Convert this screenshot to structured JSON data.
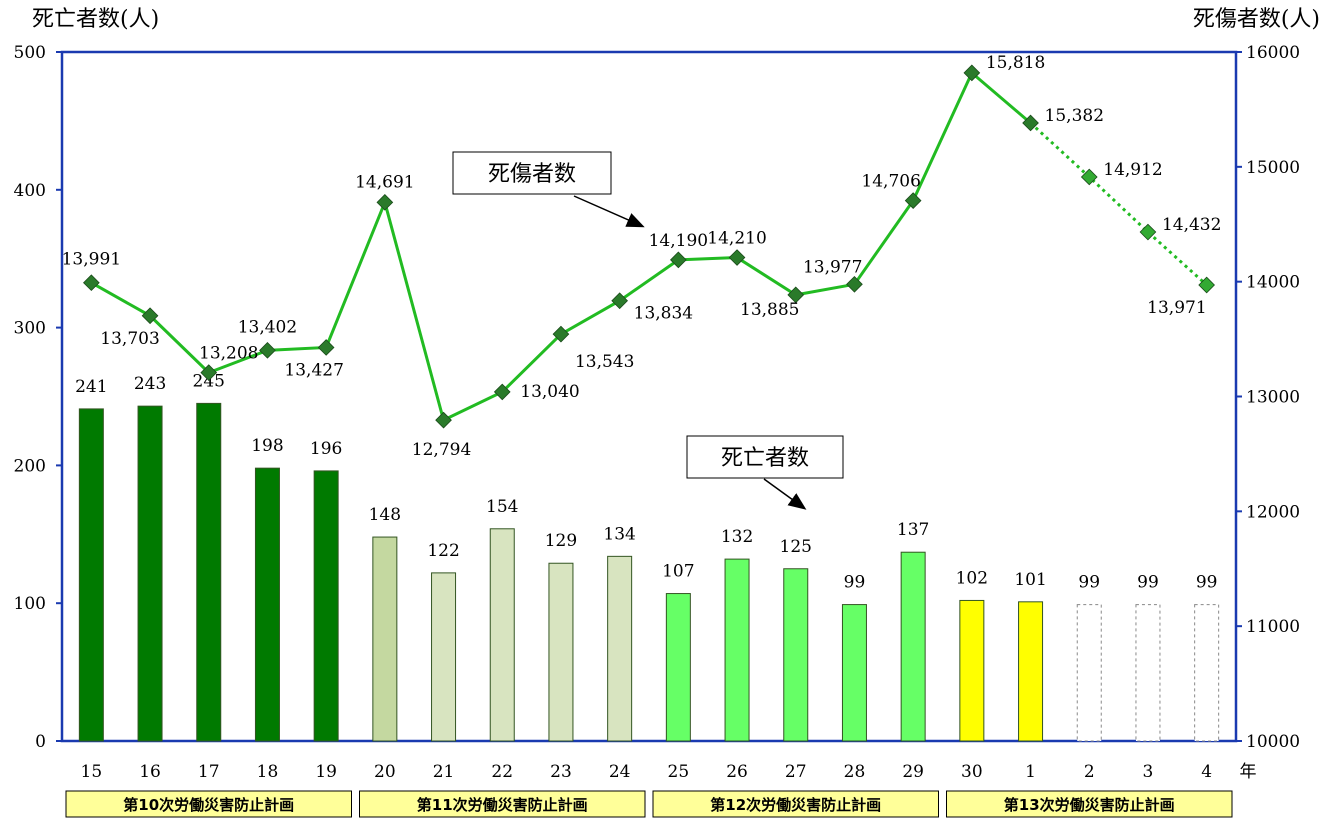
{
  "chart_data": {
    "type": "bar+line",
    "left_axis_title": "死亡者数(人)",
    "right_axis_title": "死傷者数(人)",
    "x_unit": "年",
    "categories": [
      "15",
      "16",
      "17",
      "18",
      "19",
      "20",
      "21",
      "22",
      "23",
      "24",
      "25",
      "26",
      "27",
      "28",
      "29",
      "30",
      "1",
      "2",
      "3",
      "4"
    ],
    "y_left_ticks": [
      0,
      100,
      200,
      300,
      400,
      500
    ],
    "y_left_range": [
      0,
      500
    ],
    "y_right_ticks": [
      10000,
      11000,
      12000,
      13000,
      14000,
      15000,
      16000
    ],
    "y_right_range": [
      10000,
      16000
    ],
    "deaths": {
      "name": "死亡者数",
      "values": [
        241,
        243,
        245,
        198,
        196,
        148,
        122,
        154,
        129,
        134,
        107,
        132,
        125,
        99,
        137,
        102,
        101,
        99,
        99,
        99
      ],
      "labels": [
        "241",
        "243",
        "245",
        "198",
        "196",
        "148",
        "122",
        "154",
        "129",
        "134",
        "107",
        "132",
        "125",
        "99",
        "137",
        "102",
        "101",
        "99",
        "99",
        "99"
      ],
      "colors": [
        "#007a00",
        "#007a00",
        "#007a00",
        "#007a00",
        "#007a00",
        "#c4d8a0",
        "#d8e4c0",
        "#d8e4c0",
        "#d8e4c0",
        "#d8e4c0",
        "#66ff66",
        "#66ff66",
        "#66ff66",
        "#66ff66",
        "#66ff66",
        "#ffff00",
        "#ffff00",
        "#ffffff",
        "#ffffff",
        "#ffffff"
      ],
      "dashed": [
        false,
        false,
        false,
        false,
        false,
        false,
        false,
        false,
        false,
        false,
        false,
        false,
        false,
        false,
        false,
        false,
        false,
        true,
        true,
        true
      ]
    },
    "casualties": {
      "name": "死傷者数",
      "values": [
        13991,
        13703,
        13208,
        13402,
        13427,
        14691,
        12794,
        13040,
        13543,
        13834,
        14190,
        14210,
        13885,
        13977,
        14706,
        15818,
        15382,
        14912,
        14432,
        13971
      ],
      "labels": [
        "13,991",
        "13,703",
        "13,208",
        "13,402",
        "13,427",
        "14,691",
        "12,794",
        "13,040",
        "13,543",
        "13,834",
        "14,190",
        "14,210",
        "13,885",
        "13,977",
        "14,706",
        "15,818",
        "15,382",
        "14,912",
        "14,432",
        "13,971"
      ],
      "line_color": "#22bb22",
      "marker_color": "#2a7a2a",
      "projected_marker_color": "#33aa33",
      "projected_from_index": 16
    },
    "callouts": [
      {
        "text": "死傷者数",
        "target": "casualties"
      },
      {
        "text": "死亡者数",
        "target": "deaths"
      }
    ],
    "plans": [
      {
        "label": "第10次労働災害防止計画",
        "start": 0,
        "end": 4
      },
      {
        "label": "第11次労働災害防止計画",
        "start": 5,
        "end": 9
      },
      {
        "label": "第12次労働災害防止計画",
        "start": 10,
        "end": 14
      },
      {
        "label": "第13次労働災害防止計画",
        "start": 15,
        "end": 19
      }
    ],
    "colors": {
      "axis": "#1a3ab0",
      "plan_fill": "#ffff99"
    }
  }
}
